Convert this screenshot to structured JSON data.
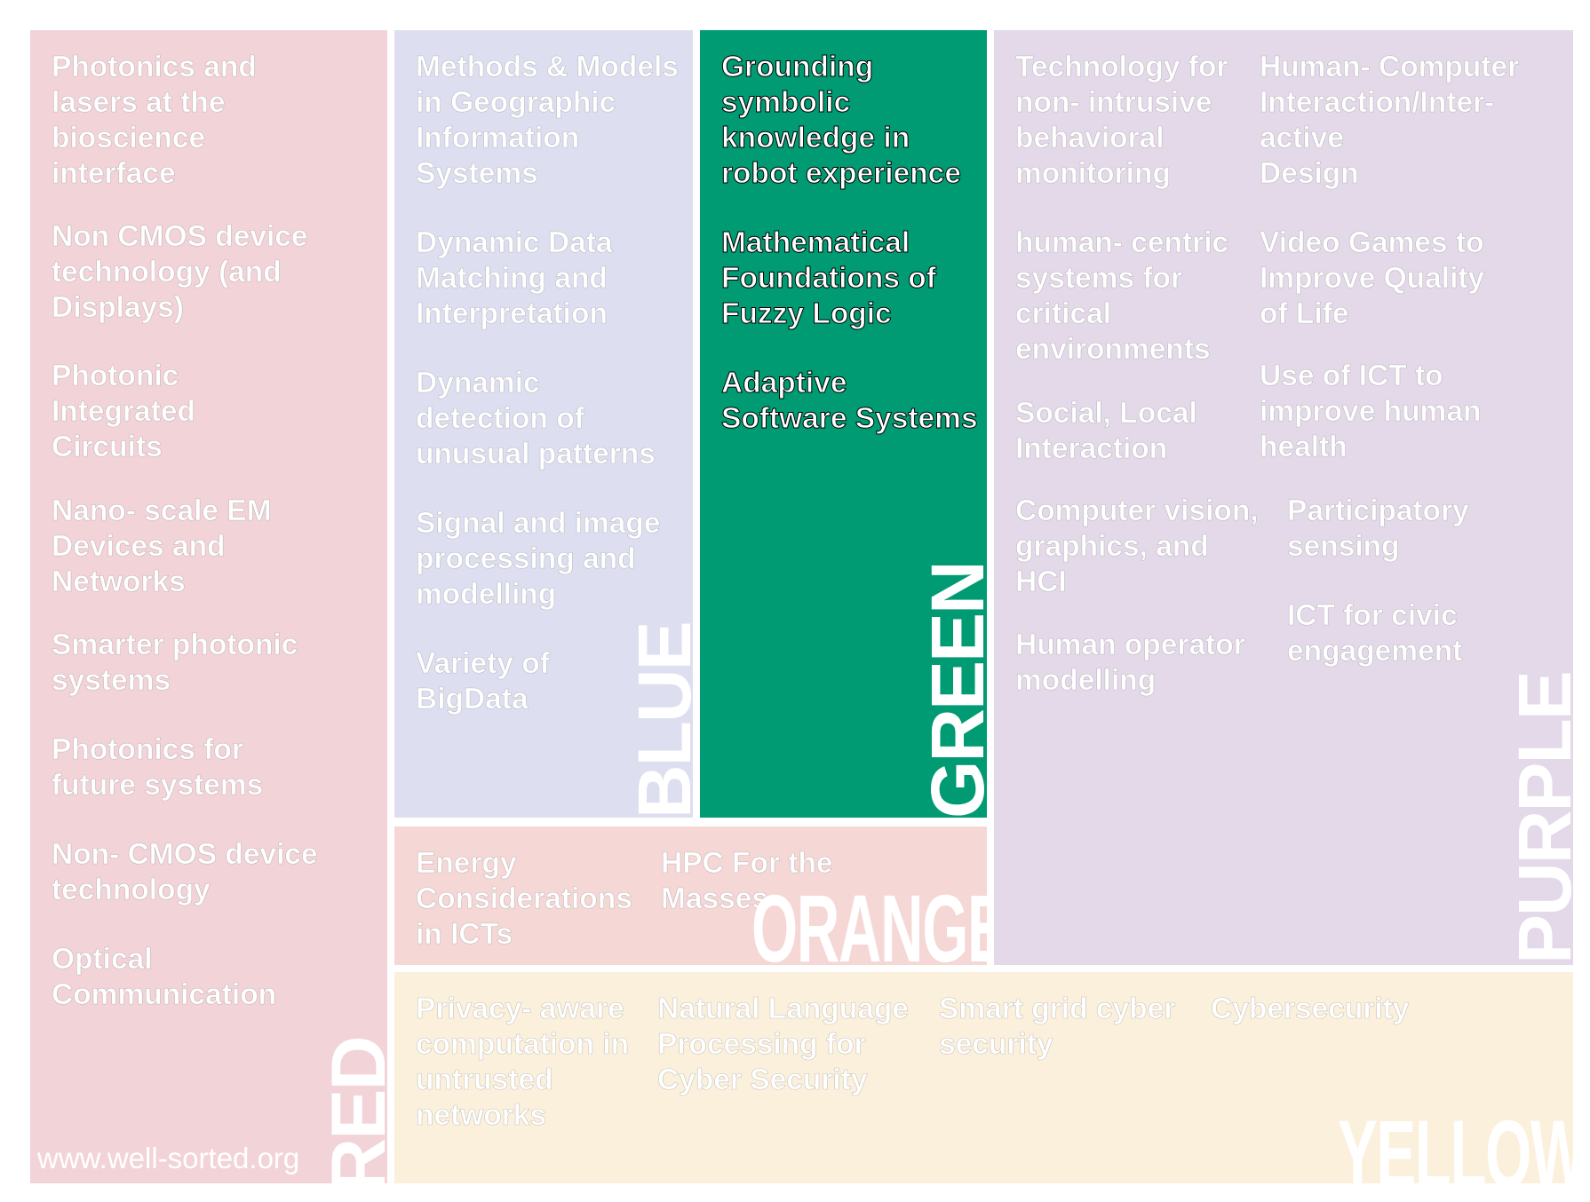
{
  "colors": {
    "red": "#f2d3d8",
    "blue": "#dddff0",
    "green": "#009b72",
    "orange": "#f5d7d6",
    "purple": "#e3d9e8",
    "yellow": "#fbf0dc"
  },
  "red": {
    "label": "RED",
    "items": [
      [
        "Photonics and",
        "lasers at the",
        "bioscience",
        "interface"
      ],
      [
        "Non CMOS device",
        "technology (and",
        "Displays)"
      ],
      [
        "Photonic",
        "Integrated",
        "Circuits"
      ],
      [
        "Nano- scale EM",
        "Devices and",
        "Networks"
      ],
      [
        "Smarter photonic",
        "systems"
      ],
      [
        "Photonics for",
        "future systems"
      ],
      [
        "Non- CMOS device",
        "technology"
      ],
      [
        "Optical",
        "Communication"
      ]
    ],
    "watermark": "www.well-sorted.org"
  },
  "blue": {
    "label": "BLUE",
    "items": [
      [
        "Methods & Models",
        "in Geographic",
        "Information",
        "Systems"
      ],
      [
        "Dynamic Data",
        "Matching and",
        "Interpretation"
      ],
      [
        "Dynamic",
        "detection of",
        "unusual patterns"
      ],
      [
        "Signal and image",
        "processing and",
        "modelling"
      ],
      [
        "Variety of",
        "BigData"
      ]
    ]
  },
  "green": {
    "label": "GREEN",
    "items": [
      [
        "Grounding",
        "symbolic",
        "knowledge in",
        "robot experience"
      ],
      [
        "Mathematical",
        "Foundations of",
        "Fuzzy Logic"
      ],
      [
        "Adaptive",
        "Software Systems"
      ]
    ]
  },
  "orange": {
    "label": "ORANGE",
    "items": [
      [
        "Energy",
        "Considerations",
        "in ICTs"
      ],
      [
        "HPC For the",
        "Masses"
      ]
    ]
  },
  "purple": {
    "label": "PURPLE",
    "items": [
      [
        "Technology for",
        "non- intrusive",
        "behavioral",
        "monitoring"
      ],
      [
        "human- centric",
        "systems for",
        "critical",
        "environments"
      ],
      [
        "Social, Local",
        "Interaction"
      ],
      [
        "Computer vision,",
        "graphics, and",
        "HCI"
      ],
      [
        "Human operator",
        "modelling"
      ],
      [
        "Human- Computer",
        "Interaction/Inter-",
        "active",
        "Design"
      ],
      [
        "Video Games to",
        "Improve Quality",
        "of Life"
      ],
      [
        "Use of ICT to",
        "improve human",
        "health"
      ],
      [
        "Participatory",
        "sensing"
      ],
      [
        "ICT for civic",
        "engagement"
      ]
    ]
  },
  "yellow": {
    "label": "YELLOW",
    "items": [
      [
        "Privacy- aware",
        "computation in",
        "untrusted",
        "networks"
      ],
      [
        "Natural Language",
        "Processing for",
        "Cyber Security"
      ],
      [
        "Smart grid cyber",
        "security"
      ],
      [
        "Cybersecurity"
      ]
    ]
  }
}
